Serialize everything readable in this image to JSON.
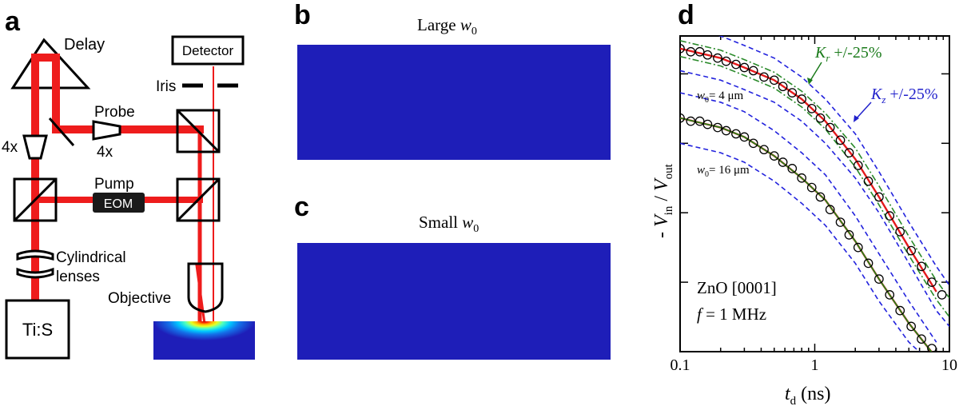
{
  "panels": {
    "a": "a",
    "b": "b",
    "c": "c",
    "d": "d"
  },
  "setup": {
    "delay": "Delay",
    "detector": "Detector",
    "iris": "Iris",
    "probe": "Probe",
    "probe_expander": "4x",
    "left_expander": "4x",
    "pump": "Pump",
    "eom": "EOM",
    "cyl_line1": "Cylindrical",
    "cyl_line2": "lenses",
    "objective": "Objective",
    "laser": "Ti:S"
  },
  "heatmap_b": {
    "title_text": "Large ",
    "title_var": "w",
    "title_sub": "0"
  },
  "heatmap_c": {
    "title_text": "Small ",
    "title_var": "w",
    "title_sub": "0"
  },
  "colors": {
    "beam": "#ee1c1c",
    "line": "#000000",
    "heat_low": "#1e1eb8",
    "fit_red": "#e41a1c",
    "blue_dash": "#2222dd",
    "green_dash": "#2a8a2a",
    "fit_green": "#1a8a1a"
  },
  "chart_data": {
    "type": "scatter",
    "xscale": "log",
    "xlim": [
      0.1,
      10
    ],
    "x_ticks": [
      "0.1",
      "1",
      "10"
    ],
    "xlabel_var": "t",
    "xlabel_sub": "d",
    "xlabel_unit": " (ns)",
    "ylabel_parts": [
      "- ",
      "V",
      "in",
      " / ",
      "V",
      "out"
    ],
    "y_ticks_shown": false,
    "annotations": {
      "kr_var": "K",
      "kr_sub": "r",
      "kr_text": " +/-25%",
      "kz_var": "K",
      "kz_sub": "z",
      "kz_text": " +/-25%",
      "w4_var": "w",
      "w4_sub": "0",
      "w4_text": "= 4 μm",
      "w16_var": "w",
      "w16_sub": "0",
      "w16_text": "= 16 μm",
      "material": "ZnO [0001]",
      "freq_var": "f",
      "freq_text": " = 1 MHz"
    },
    "series": [
      {
        "name": "w0 = 4 μm data",
        "kind": "markers",
        "x": [
          0.1,
          0.12,
          0.14,
          0.16,
          0.19,
          0.22,
          0.26,
          0.3,
          0.35,
          0.42,
          0.5,
          0.58,
          0.68,
          0.8,
          0.95,
          1.1,
          1.3,
          1.55,
          1.8,
          2.1,
          2.5,
          3.0,
          3.6,
          4.3,
          5.2,
          6.2,
          7.4,
          8.8
        ],
        "y": [
          0.96,
          0.95,
          0.95,
          0.94,
          0.93,
          0.92,
          0.91,
          0.9,
          0.89,
          0.87,
          0.86,
          0.84,
          0.82,
          0.8,
          0.77,
          0.74,
          0.71,
          0.67,
          0.63,
          0.59,
          0.54,
          0.49,
          0.43,
          0.38,
          0.32,
          0.27,
          0.22,
          0.18
        ]
      },
      {
        "name": "w0 = 16 μm data",
        "kind": "markers",
        "x": [
          0.1,
          0.12,
          0.14,
          0.16,
          0.19,
          0.22,
          0.26,
          0.3,
          0.35,
          0.42,
          0.5,
          0.58,
          0.68,
          0.8,
          0.95,
          1.1,
          1.3,
          1.55,
          1.8,
          2.1,
          2.5,
          3.0,
          3.6,
          4.3,
          5.2,
          6.2,
          7.4
        ],
        "y": [
          0.74,
          0.73,
          0.73,
          0.72,
          0.71,
          0.7,
          0.69,
          0.68,
          0.66,
          0.64,
          0.62,
          0.6,
          0.58,
          0.55,
          0.52,
          0.49,
          0.45,
          0.41,
          0.37,
          0.33,
          0.28,
          0.23,
          0.18,
          0.13,
          0.08,
          0.04,
          0.01
        ]
      },
      {
        "name": "fit w0 = 4 μm",
        "kind": "line",
        "color": "fit_red",
        "dash": "",
        "x": [
          0.1,
          0.2,
          0.3,
          0.5,
          0.8,
          1.2,
          2,
          3,
          5,
          8
        ],
        "y": [
          0.96,
          0.93,
          0.9,
          0.86,
          0.8,
          0.73,
          0.61,
          0.49,
          0.33,
          0.19
        ]
      },
      {
        "name": "fit w0 = 16 μm",
        "kind": "line",
        "color": "fit_red",
        "dash": "",
        "x": [
          0.1,
          0.2,
          0.3,
          0.5,
          0.8,
          1.2,
          2,
          3,
          5,
          8
        ],
        "y": [
          0.74,
          0.71,
          0.68,
          0.62,
          0.55,
          0.48,
          0.35,
          0.23,
          0.09,
          -0.02
        ]
      },
      {
        "name": "fit w0 = 16 μm (green)",
        "kind": "line",
        "color": "fit_green",
        "dash": "",
        "x": [
          0.1,
          0.2,
          0.3,
          0.5,
          0.8,
          1.2,
          2,
          3,
          5,
          8
        ],
        "y": [
          0.74,
          0.71,
          0.68,
          0.62,
          0.55,
          0.48,
          0.35,
          0.23,
          0.09,
          -0.02
        ]
      },
      {
        "name": "Kz +25% (4 μm)",
        "kind": "line",
        "color": "blue_dash",
        "dash": "6,4",
        "x": [
          0.1,
          0.2,
          0.3,
          0.5,
          0.8,
          1.2,
          2,
          3,
          5,
          8,
          10
        ],
        "y": [
          1.03,
          1.0,
          0.97,
          0.93,
          0.87,
          0.8,
          0.69,
          0.57,
          0.41,
          0.27,
          0.21
        ]
      },
      {
        "name": "Kz -25% (4 μm)",
        "kind": "line",
        "color": "blue_dash",
        "dash": "6,4",
        "x": [
          0.1,
          0.2,
          0.3,
          0.5,
          0.8,
          1.2,
          2,
          3,
          5,
          8,
          10
        ],
        "y": [
          0.89,
          0.86,
          0.83,
          0.79,
          0.73,
          0.66,
          0.55,
          0.44,
          0.28,
          0.13,
          0.08
        ]
      },
      {
        "name": "Kr +25% (4 μm)",
        "kind": "line",
        "color": "green_dash",
        "dash": "8,3,2,3",
        "x": [
          0.1,
          0.2,
          0.3,
          0.5,
          0.8,
          1.2,
          2,
          3,
          5,
          8,
          10
        ],
        "y": [
          0.985,
          0.955,
          0.925,
          0.885,
          0.825,
          0.755,
          0.645,
          0.525,
          0.365,
          0.225,
          0.17
        ]
      },
      {
        "name": "Kr -25% (4 μm)",
        "kind": "line",
        "color": "green_dash",
        "dash": "8,3,2,3",
        "x": [
          0.1,
          0.2,
          0.3,
          0.5,
          0.8,
          1.2,
          2,
          3,
          5,
          8,
          10
        ],
        "y": [
          0.935,
          0.905,
          0.875,
          0.835,
          0.775,
          0.705,
          0.585,
          0.465,
          0.305,
          0.165,
          0.11
        ]
      },
      {
        "name": "Kz +25% (16 μm)",
        "kind": "line",
        "color": "blue_dash",
        "dash": "6,4",
        "x": [
          0.1,
          0.2,
          0.3,
          0.5,
          0.8,
          1.2,
          2,
          3,
          5,
          8
        ],
        "y": [
          0.82,
          0.79,
          0.76,
          0.7,
          0.63,
          0.56,
          0.43,
          0.31,
          0.16,
          0.03
        ]
      },
      {
        "name": "Kz -25% (16 μm)",
        "kind": "line",
        "color": "blue_dash",
        "dash": "6,4",
        "x": [
          0.1,
          0.2,
          0.3,
          0.5,
          0.8,
          1.2,
          2,
          3,
          5,
          8
        ],
        "y": [
          0.66,
          0.63,
          0.6,
          0.54,
          0.47,
          0.4,
          0.28,
          0.16,
          0.03,
          -0.05
        ]
      }
    ]
  }
}
